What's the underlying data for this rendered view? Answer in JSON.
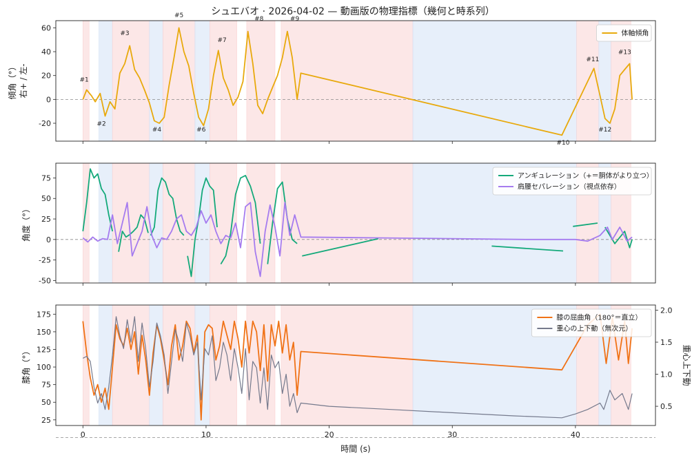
{
  "title": "シュエバオ · 2026-04-02 — 動画版の物理指標（幾何と時系列）",
  "xlabel": "時間 (s)",
  "x_ticks": [
    0,
    10,
    20,
    30,
    40
  ],
  "xlim": [
    -2.2,
    46.5
  ],
  "chart_data": [
    {
      "type": "line",
      "ylabel": "傾角（°）",
      "ylabel2": "右+ / 左-",
      "ylim": [
        -35,
        66
      ],
      "y_ticks": [
        60,
        40,
        20,
        0,
        -20
      ],
      "grid": false,
      "legend": "top-right",
      "series": [
        {
          "name": "体軸傾角",
          "color": "#E8A90C",
          "x": [
            0,
            0.3,
            0.7,
            1.0,
            1.4,
            1.8,
            2.2,
            2.6,
            3.0,
            3.4,
            3.8,
            4.2,
            4.6,
            5.0,
            5.4,
            5.8,
            6.2,
            6.6,
            7.0,
            7.4,
            7.8,
            8.2,
            8.6,
            9.0,
            9.4,
            9.8,
            10.2,
            10.6,
            11.0,
            11.4,
            11.8,
            12.2,
            12.6,
            13.0,
            13.4,
            13.8,
            14.2,
            14.6,
            15.0,
            15.4,
            15.8,
            16.2,
            16.6,
            17.0,
            17.4,
            17.7,
            38.9,
            41.5,
            42.0,
            42.4,
            42.8,
            43.2,
            43.6,
            44.0,
            44.4,
            44.6
          ],
          "y": [
            0,
            8,
            3,
            -2,
            5,
            -14,
            -2,
            -8,
            22,
            30,
            45,
            25,
            18,
            8,
            -3,
            -18,
            -20,
            -15,
            12,
            35,
            60,
            40,
            28,
            5,
            -15,
            -22,
            -8,
            20,
            41,
            18,
            8,
            -5,
            2,
            15,
            57,
            30,
            -5,
            -12,
            0,
            10,
            20,
            35,
            57,
            35,
            0,
            22,
            -30,
            26,
            3,
            -16,
            -20,
            -8,
            20,
            25,
            30,
            0
          ]
        }
      ],
      "annotations": [
        {
          "label": "#1",
          "x": 0.1,
          "y": 15
        },
        {
          "label": "#2",
          "x": 1.5,
          "y": -22
        },
        {
          "label": "#3",
          "x": 3.4,
          "y": 54
        },
        {
          "label": "#4",
          "x": 6.0,
          "y": -27
        },
        {
          "label": "#5",
          "x": 7.8,
          "y": 69
        },
        {
          "label": "#6",
          "x": 9.6,
          "y": -27
        },
        {
          "label": "#7",
          "x": 11.3,
          "y": 48
        },
        {
          "label": "#8",
          "x": 14.3,
          "y": 66
        },
        {
          "label": "#9",
          "x": 17.2,
          "y": 66
        },
        {
          "label": "#10",
          "x": 39.0,
          "y": -38
        },
        {
          "label": "#11",
          "x": 41.4,
          "y": 32
        },
        {
          "label": "#12",
          "x": 42.4,
          "y": -27
        },
        {
          "label": "#13",
          "x": 44.0,
          "y": 38
        }
      ]
    },
    {
      "type": "line",
      "ylabel": "角度（°）",
      "ylim": [
        -53,
        93
      ],
      "y_ticks": [
        75,
        50,
        25,
        0,
        -25,
        -50
      ],
      "grid": false,
      "legend": "top-right",
      "series": [
        {
          "name": "アンギュレーション（+＝胴体がより立つ）",
          "color": "#13A97A",
          "x": [
            0,
            0.3,
            0.6,
            0.9,
            1.2,
            1.5,
            1.8,
            2.1,
            2.4,
            null,
            2.9,
            3.2,
            3.5,
            3.8,
            4.1,
            4.4,
            4.7,
            5.0,
            5.3,
            null,
            5.5,
            5.8,
            6.1,
            6.4,
            6.7,
            7.0,
            7.3,
            7.6,
            7.9,
            8.2,
            null,
            8.5,
            8.8,
            9.1,
            9.4,
            9.7,
            10.0,
            10.3,
            10.6,
            10.9,
            null,
            11.2,
            11.6,
            12.0,
            12.4,
            12.8,
            13.2,
            13.6,
            14.0,
            14.4,
            null,
            15.0,
            15.4,
            15.8,
            16.2,
            16.6,
            17.0,
            17.4,
            null,
            17.8,
            24.0,
            null,
            33.2,
            39.0,
            null,
            39.8,
            41.8,
            null,
            42.4,
            43.2,
            44.0,
            44.4,
            44.6
          ],
          "y": [
            10,
            45,
            86,
            75,
            80,
            62,
            55,
            30,
            10,
            null,
            -15,
            10,
            3,
            6,
            10,
            15,
            30,
            25,
            8,
            null,
            5,
            15,
            60,
            75,
            70,
            55,
            50,
            25,
            10,
            5,
            null,
            -20,
            -45,
            0,
            25,
            60,
            75,
            65,
            60,
            15,
            null,
            -30,
            -20,
            8,
            55,
            75,
            78,
            65,
            45,
            -5,
            null,
            -30,
            20,
            62,
            70,
            25,
            0,
            -5,
            null,
            -20,
            1,
            null,
            -8,
            -14,
            null,
            16,
            20,
            null,
            15,
            -5,
            10,
            -10,
            0
          ]
        },
        {
          "name": "肩腰セパレーション（視点依存）",
          "color": "#A57BEF",
          "x": [
            0,
            0.4,
            0.8,
            1.2,
            1.6,
            2.0,
            2.4,
            2.8,
            3.2,
            3.6,
            4.0,
            4.4,
            4.8,
            5.2,
            5.6,
            6.0,
            6.4,
            6.8,
            7.2,
            7.6,
            8.0,
            8.4,
            8.8,
            9.2,
            9.6,
            10.0,
            10.4,
            10.8,
            11.2,
            11.6,
            12.0,
            12.4,
            12.8,
            13.2,
            13.6,
            14.0,
            14.4,
            14.8,
            15.2,
            15.6,
            16.0,
            16.4,
            16.8,
            17.2,
            17.7,
            24.0,
            30.0,
            36.0,
            40.0,
            41.0,
            42.0,
            42.6,
            43.0,
            43.6,
            44.2,
            44.6
          ],
          "y": [
            2,
            -3,
            3,
            -2,
            1,
            0,
            30,
            -5,
            20,
            45,
            -20,
            -5,
            10,
            40,
            5,
            -10,
            2,
            0,
            10,
            25,
            30,
            10,
            5,
            15,
            35,
            20,
            30,
            10,
            -5,
            5,
            2,
            20,
            -10,
            40,
            45,
            -15,
            -45,
            10,
            42,
            15,
            -20,
            45,
            5,
            30,
            3,
            2,
            1,
            0,
            0,
            -2,
            5,
            15,
            0,
            15,
            -2,
            3
          ]
        }
      ]
    },
    {
      "type": "line",
      "ylabel": "膝角（°）",
      "ylabel_right": "重心上下動",
      "ylim": [
        17,
        188
      ],
      "y_ticks": [
        175,
        150,
        125,
        100,
        75,
        50,
        25
      ],
      "ylim_right": [
        0.2,
        2.08
      ],
      "y_ticks_right": [
        2.0,
        1.5,
        1.0,
        0.5
      ],
      "grid": false,
      "legend": "top-right",
      "series": [
        {
          "name": "膝の屈曲角（180°＝直立）",
          "color": "#F07216",
          "axis": "left",
          "x": [
            0,
            0.3,
            0.6,
            0.9,
            1.2,
            1.5,
            1.8,
            2.1,
            2.4,
            2.7,
            3.0,
            3.3,
            3.6,
            3.9,
            4.2,
            4.5,
            4.8,
            5.1,
            5.4,
            5.7,
            6.0,
            6.3,
            6.6,
            6.9,
            7.2,
            7.5,
            7.8,
            8.1,
            8.4,
            8.7,
            9.0,
            9.3,
            9.6,
            9.9,
            10.2,
            10.5,
            10.8,
            11.1,
            11.4,
            11.7,
            12.0,
            12.3,
            12.6,
            12.9,
            13.2,
            13.5,
            13.8,
            14.1,
            14.4,
            14.7,
            15.0,
            15.3,
            15.6,
            15.9,
            16.2,
            16.5,
            16.8,
            17.1,
            17.4,
            17.7,
            38.9,
            41.0,
            42.0,
            42.5,
            43.0,
            43.5,
            44.0,
            44.3,
            44.6
          ],
          "y": [
            165,
            120,
            85,
            60,
            75,
            50,
            70,
            40,
            100,
            160,
            140,
            130,
            155,
            125,
            150,
            90,
            145,
            110,
            60,
            120,
            160,
            140,
            110,
            75,
            130,
            160,
            110,
            130,
            165,
            155,
            120,
            145,
            25,
            150,
            160,
            155,
            110,
            130,
            165,
            145,
            125,
            165,
            140,
            100,
            165,
            120,
            165,
            150,
            95,
            160,
            80,
            160,
            130,
            165,
            120,
            160,
            110,
            135,
            60,
            122,
            96,
            160,
            175,
            105,
            170,
            110,
            165,
            105,
            155
          ]
        },
        {
          "name": "重心の上下動（無次元）",
          "color": "#74798C",
          "axis": "right",
          "x": [
            0,
            0.3,
            0.6,
            0.9,
            1.2,
            1.5,
            1.8,
            2.1,
            2.4,
            2.7,
            3.0,
            3.3,
            3.6,
            3.9,
            4.2,
            4.5,
            4.8,
            5.1,
            5.4,
            5.7,
            6.0,
            6.3,
            6.6,
            6.9,
            7.2,
            7.5,
            7.8,
            8.1,
            8.4,
            8.7,
            9.0,
            9.3,
            9.6,
            9.9,
            10.2,
            10.5,
            10.8,
            11.1,
            11.4,
            11.7,
            12.0,
            12.3,
            12.6,
            12.9,
            13.2,
            13.5,
            13.8,
            14.1,
            14.4,
            14.7,
            15.0,
            15.3,
            15.6,
            15.9,
            16.2,
            16.5,
            16.8,
            17.1,
            17.4,
            17.7,
            20.0,
            25.0,
            30.0,
            35.0,
            38.9,
            40.0,
            41.0,
            42.0,
            42.3,
            42.8,
            43.2,
            43.8,
            44.3,
            44.6
          ],
          "y": [
            1.25,
            1.28,
            1.2,
            0.8,
            0.55,
            0.7,
            0.45,
            0.8,
            1.3,
            1.9,
            1.6,
            1.4,
            1.85,
            1.5,
            1.9,
            1.2,
            1.8,
            1.4,
            0.8,
            1.2,
            1.8,
            1.6,
            1.3,
            0.7,
            1.2,
            1.7,
            1.5,
            1.2,
            1.8,
            1.6,
            1.3,
            1.5,
            0.6,
            1.4,
            1.3,
            1.6,
            0.9,
            1.1,
            1.5,
            1.3,
            0.9,
            1.4,
            1.1,
            0.7,
            1.4,
            0.6,
            1.2,
            1.1,
            0.55,
            1.1,
            0.45,
            1.3,
            1.1,
            1.2,
            0.7,
            1.0,
            0.5,
            0.7,
            0.4,
            0.55,
            0.5,
            0.45,
            0.4,
            0.35,
            0.32,
            0.38,
            0.45,
            0.55,
            0.45,
            0.75,
            0.6,
            0.7,
            0.45,
            0.7
          ]
        }
      ]
    }
  ],
  "bands": [
    {
      "x0": 0.0,
      "x1": 0.5,
      "color": "#F9D0D0"
    },
    {
      "x0": 1.3,
      "x1": 2.4,
      "color": "#CFE0F6"
    },
    {
      "x0": 2.4,
      "x1": 5.4,
      "color": "#F9D0D0"
    },
    {
      "x0": 5.4,
      "x1": 6.5,
      "color": "#CFE0F6"
    },
    {
      "x0": 6.5,
      "x1": 9.1,
      "color": "#F9D0D0"
    },
    {
      "x0": 9.1,
      "x1": 10.3,
      "color": "#CFE0F6"
    },
    {
      "x0": 10.3,
      "x1": 12.5,
      "color": "#F9D0D0"
    },
    {
      "x0": 13.3,
      "x1": 15.6,
      "color": "#F9D0D0"
    },
    {
      "x0": 16.1,
      "x1": 26.8,
      "color": "#F9D0D0"
    },
    {
      "x0": 26.8,
      "x1": 40.1,
      "color": "#CFE0F6"
    },
    {
      "x0": 40.1,
      "x1": 41.9,
      "color": "#F9D0D0"
    },
    {
      "x0": 41.9,
      "x1": 42.9,
      "color": "#CFE0F6"
    },
    {
      "x0": 42.9,
      "x1": 44.5,
      "color": "#F9D0D0"
    }
  ]
}
